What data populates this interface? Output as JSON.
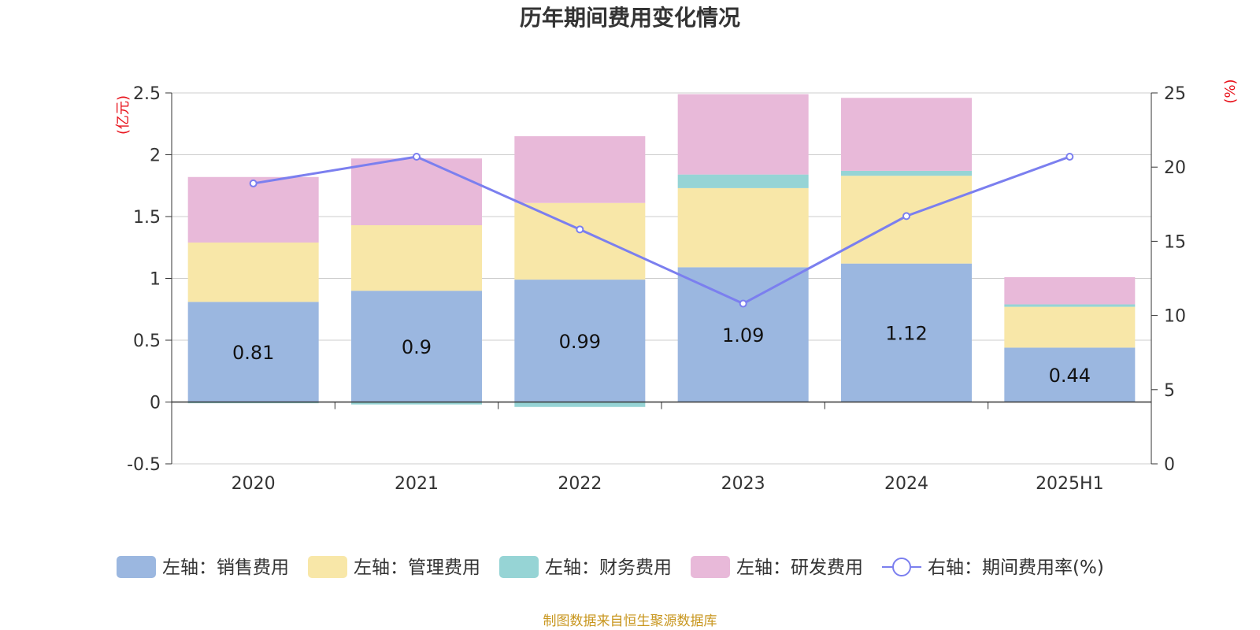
{
  "chart_data": {
    "type": "bar",
    "title": "历年期间费用变化情况",
    "categories": [
      "2020",
      "2021",
      "2022",
      "2023",
      "2024",
      "2025H1"
    ],
    "left_axis": {
      "unit": "(亿元)",
      "ylim": [
        -0.5,
        2.5
      ],
      "ticks": [
        "-0.5",
        "0",
        "0.5",
        "1",
        "1.5",
        "2",
        "2.5"
      ],
      "tick_values": [
        -0.5,
        0,
        0.5,
        1,
        1.5,
        2,
        2.5
      ]
    },
    "right_axis": {
      "unit": "(%)",
      "ylim": [
        0,
        25
      ],
      "ticks": [
        "0",
        "5",
        "10",
        "15",
        "20",
        "25"
      ],
      "tick_values": [
        0,
        5,
        10,
        15,
        20,
        25
      ]
    },
    "series": [
      {
        "name": "左轴：销售费用",
        "type": "bar",
        "axis": "left",
        "color": "#9bb7e0",
        "values": [
          0.81,
          0.9,
          0.99,
          1.09,
          1.12,
          0.44
        ],
        "labels": [
          "0.81",
          "0.9",
          "0.99",
          "1.09",
          "1.12",
          "0.44"
        ]
      },
      {
        "name": "左轴：管理费用",
        "type": "bar",
        "axis": "left",
        "color": "#f8e7a8",
        "values": [
          0.48,
          0.53,
          0.62,
          0.64,
          0.71,
          0.33
        ]
      },
      {
        "name": "左轴：财务费用",
        "type": "bar",
        "axis": "left",
        "color": "#96d4d5",
        "values": [
          -0.01,
          -0.02,
          -0.04,
          0.11,
          0.04,
          0.02
        ]
      },
      {
        "name": "左轴：研发费用",
        "type": "bar",
        "axis": "left",
        "color": "#e8b9d9",
        "values": [
          0.53,
          0.54,
          0.54,
          0.65,
          0.59,
          0.22
        ]
      },
      {
        "name": "右轴：期间费用率(%)",
        "type": "line",
        "axis": "right",
        "color": "#7b7fef",
        "values": [
          18.9,
          20.7,
          15.8,
          10.8,
          16.7,
          20.7
        ]
      }
    ],
    "grid": true,
    "legend": "bottom"
  },
  "footer": {
    "source": "制图数据来自恒生聚源数据库"
  }
}
